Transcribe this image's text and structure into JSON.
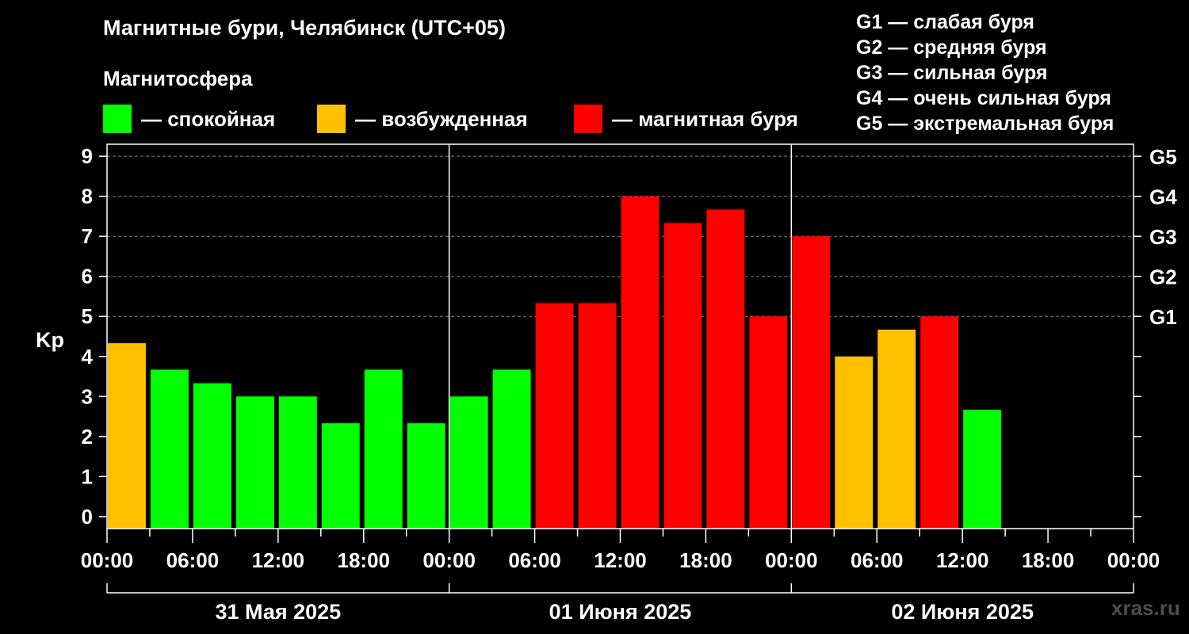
{
  "title": "Магнитные бури, Челябинск (UTC+05)",
  "subtitle": "Магнитосфера",
  "legend": [
    {
      "color": "#00ff00",
      "label": "— спокойная"
    },
    {
      "color": "#ffc000",
      "label": "— возбужденная"
    },
    {
      "color": "#ff0000",
      "label": "— магнитная буря"
    }
  ],
  "g_scale": [
    "G1 — слабая буря",
    "G2 — средняя буря",
    "G3 — сильная буря",
    "G4 — очень сильная буря",
    "G5 — экстремальная буря"
  ],
  "watermark": "xras.ru",
  "chart_data": {
    "type": "bar",
    "ylabel": "Kp",
    "ylim": [
      -0.3,
      9.3
    ],
    "y_ticks": [
      0,
      1,
      2,
      3,
      4,
      5,
      6,
      7,
      8,
      9
    ],
    "right_ticks": [
      {
        "value": 5,
        "label": "G1"
      },
      {
        "value": 6,
        "label": "G2"
      },
      {
        "value": 7,
        "label": "G3"
      },
      {
        "value": 8,
        "label": "G4"
      },
      {
        "value": 9,
        "label": "G5"
      }
    ],
    "x_tick_labels": [
      "00:00",
      "06:00",
      "12:00",
      "18:00",
      "00:00",
      "06:00",
      "12:00",
      "18:00",
      "00:00",
      "06:00",
      "12:00",
      "18:00",
      "00:00"
    ],
    "x_range_hours": [
      0,
      72
    ],
    "bar_interval_hours": 3,
    "day_labels": [
      "31 Мая 2025",
      "01 Июня 2025",
      "02 Июня 2025"
    ],
    "grid": "horizontal dashed at G levels",
    "values": [
      4.33,
      3.67,
      3.33,
      3.0,
      3.0,
      2.33,
      3.67,
      2.33,
      3.0,
      3.67,
      5.33,
      5.33,
      8.0,
      7.33,
      7.67,
      5.0,
      7.0,
      4.0,
      4.67,
      5.0,
      2.67
    ],
    "colors": [
      "#ffc000",
      "#00ff00",
      "#00ff00",
      "#00ff00",
      "#00ff00",
      "#00ff00",
      "#00ff00",
      "#00ff00",
      "#00ff00",
      "#00ff00",
      "#ff0000",
      "#ff0000",
      "#ff0000",
      "#ff0000",
      "#ff0000",
      "#ff0000",
      "#ff0000",
      "#ffc000",
      "#ffc000",
      "#ff0000",
      "#00ff00"
    ]
  }
}
